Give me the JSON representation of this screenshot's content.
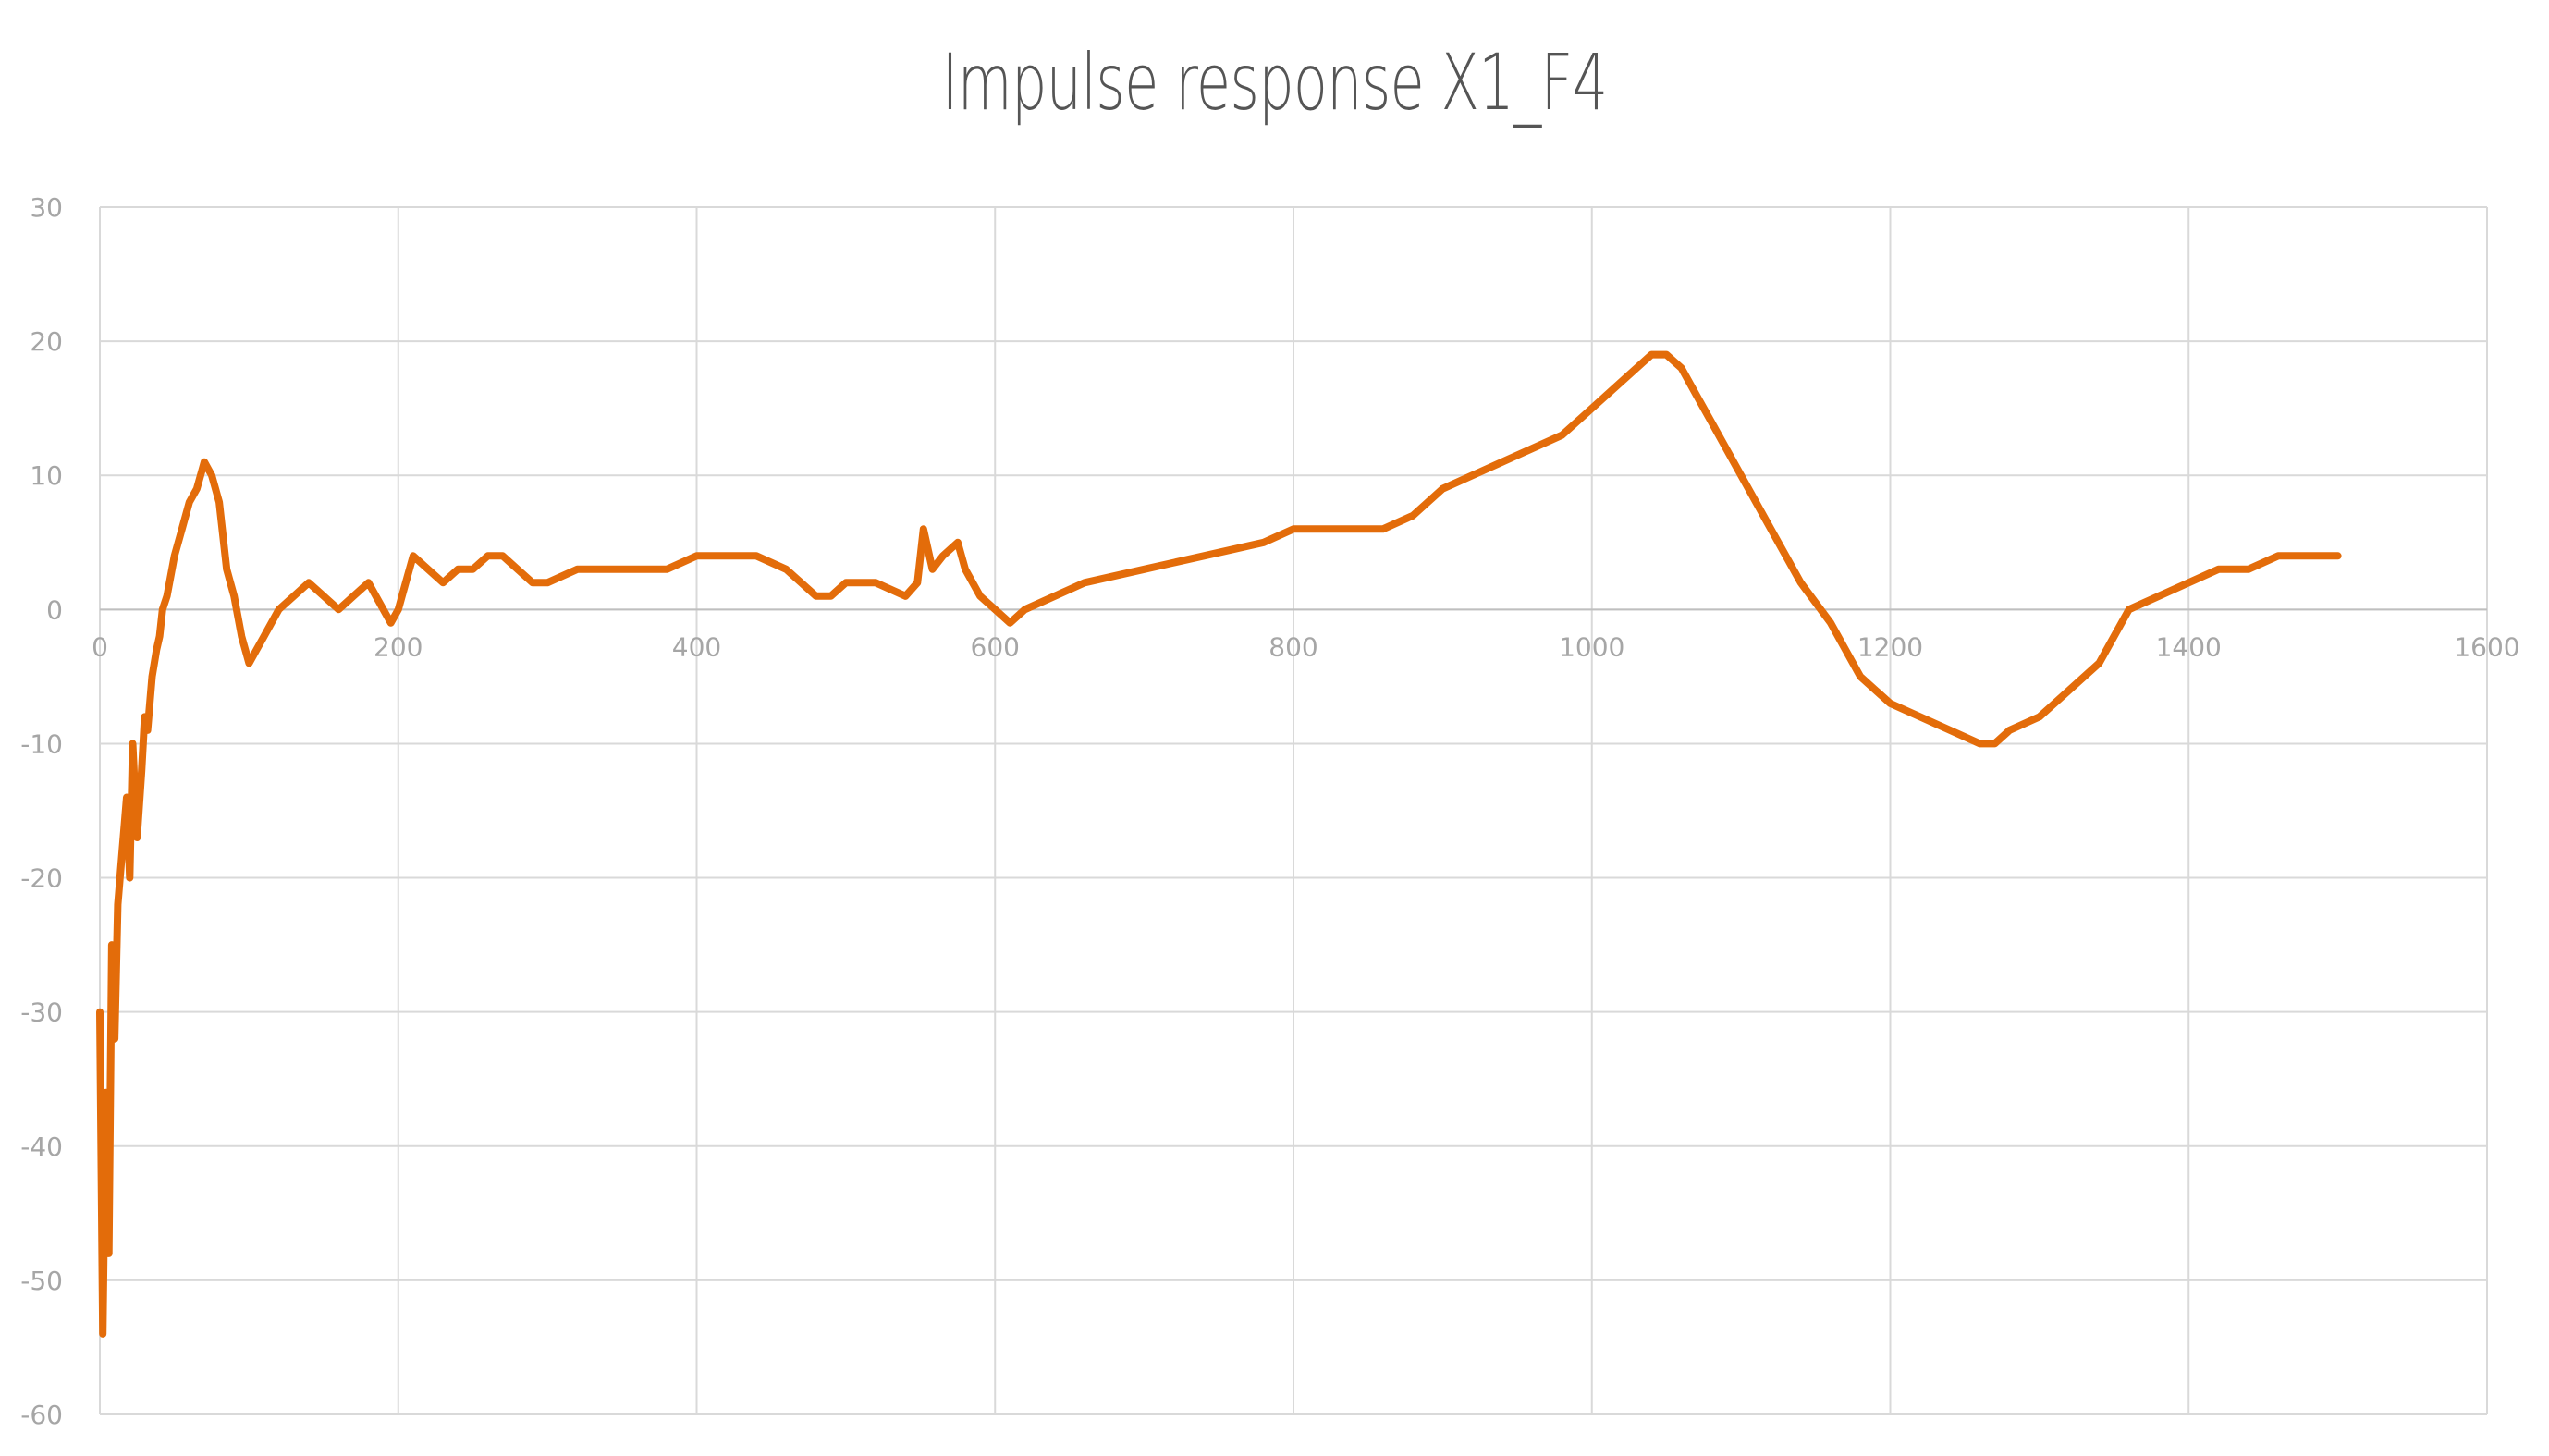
{
  "chart_data": {
    "type": "line",
    "title": "Impulse response X1_F4",
    "xlabel": "",
    "ylabel": "",
    "xlim": [
      0,
      1600
    ],
    "ylim": [
      -60,
      30
    ],
    "x_ticks": [
      0,
      200,
      400,
      600,
      800,
      1000,
      1200,
      1400,
      1600
    ],
    "y_ticks": [
      30,
      20,
      10,
      0,
      -10,
      -20,
      -30,
      -40,
      -50,
      -60
    ],
    "grid": true,
    "legend": "none",
    "line_color": "#e36c0a",
    "series": [
      {
        "x": [
          0,
          2,
          4,
          6,
          8,
          10,
          12,
          15,
          18,
          20,
          22,
          25,
          28,
          30,
          32,
          35,
          38,
          40,
          42,
          45,
          50,
          55,
          60,
          65,
          70,
          75,
          80,
          85,
          90,
          95,
          100,
          105,
          110,
          120,
          130,
          140,
          150,
          160,
          170,
          180,
          190,
          195,
          200,
          205,
          210,
          220,
          230,
          240,
          250,
          260,
          270,
          280,
          290,
          300,
          320,
          340,
          360,
          380,
          400,
          420,
          440,
          460,
          470,
          480,
          490,
          500,
          520,
          540,
          548,
          552,
          558,
          565,
          575,
          580,
          590,
          600,
          610,
          620,
          640,
          660,
          700,
          740,
          780,
          800,
          820,
          840,
          860,
          880,
          900,
          920,
          940,
          960,
          980,
          1000,
          1020,
          1040,
          1050,
          1060,
          1070,
          1080,
          1100,
          1120,
          1140,
          1160,
          1180,
          1200,
          1220,
          1240,
          1260,
          1270,
          1280,
          1300,
          1320,
          1340,
          1360,
          1380,
          1400,
          1420,
          1440,
          1460,
          1480,
          1500
        ],
        "y": [
          -30,
          -54,
          -36,
          -48,
          -25,
          -32,
          -22,
          -18,
          -14,
          -20,
          -10,
          -17,
          -12,
          -8,
          -9,
          -5,
          -3,
          -2,
          0,
          1,
          4,
          6,
          8,
          9,
          11,
          10,
          8,
          3,
          1,
          -2,
          -4,
          -3,
          -2,
          0,
          1,
          2,
          1,
          0,
          1,
          2,
          0,
          -1,
          0,
          2,
          4,
          3,
          2,
          3,
          3,
          4,
          4,
          3,
          2,
          2,
          3,
          3,
          3,
          3,
          4,
          4,
          4,
          3,
          2,
          1,
          1,
          2,
          2,
          1,
          2,
          6,
          3,
          4,
          5,
          3,
          1,
          0,
          -1,
          0,
          1,
          2,
          3,
          4,
          5,
          6,
          6,
          6,
          6,
          7,
          9,
          10,
          11,
          12,
          13,
          15,
          17,
          19,
          19,
          18,
          16,
          14,
          10,
          6,
          2,
          -1,
          -5,
          -7,
          -8,
          -9,
          -10,
          -10,
          -9,
          -8,
          -6,
          -4,
          0,
          1,
          2,
          3,
          3,
          4,
          4,
          4
        ]
      }
    ]
  }
}
